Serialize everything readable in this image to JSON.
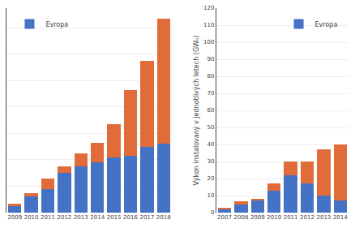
{
  "chart_data": [
    {
      "type": "bar",
      "stacked": true,
      "categories": [
        "2009",
        "2010",
        "2011",
        "2012",
        "2013",
        "2014",
        "2015",
        "2016",
        "2017",
        "2018"
      ],
      "series": [
        {
          "name": "Evropa",
          "color": "#4472c4",
          "values": [
            5,
            12,
            18,
            30,
            35,
            38,
            42,
            43,
            50,
            52
          ]
        },
        {
          "color": "#e26b3a",
          "values": [
            2,
            3,
            8,
            5,
            10,
            15,
            25,
            50,
            65,
            95
          ]
        }
      ],
      "ylim": [
        0,
        155
      ],
      "yticks": [
        20,
        40,
        60,
        80,
        100,
        120,
        140
      ],
      "grid": true,
      "legend": "upper left",
      "tick_labels": "x"
    },
    {
      "type": "bar",
      "stacked": true,
      "categories": [
        "2007",
        "2008",
        "2009",
        "2010",
        "2011",
        "2012",
        "2013",
        "2014"
      ],
      "series": [
        {
          "name": "Evropa",
          "color": "#4472c4",
          "values": [
            2,
            5,
            7,
            13,
            22,
            17,
            10,
            7
          ]
        },
        {
          "color": "#e26b3a",
          "values": [
            0.5,
            1.5,
            1,
            4,
            8,
            13,
            27,
            33
          ]
        }
      ],
      "ylabel": "Výkon instalovaný v jednotlivých letech (GWₕ)",
      "ylim": [
        0,
        120
      ],
      "yticks": [
        0,
        10,
        20,
        30,
        40,
        50,
        60,
        70,
        80,
        90,
        100,
        110,
        120
      ],
      "grid": true,
      "legend": "upper right"
    }
  ]
}
